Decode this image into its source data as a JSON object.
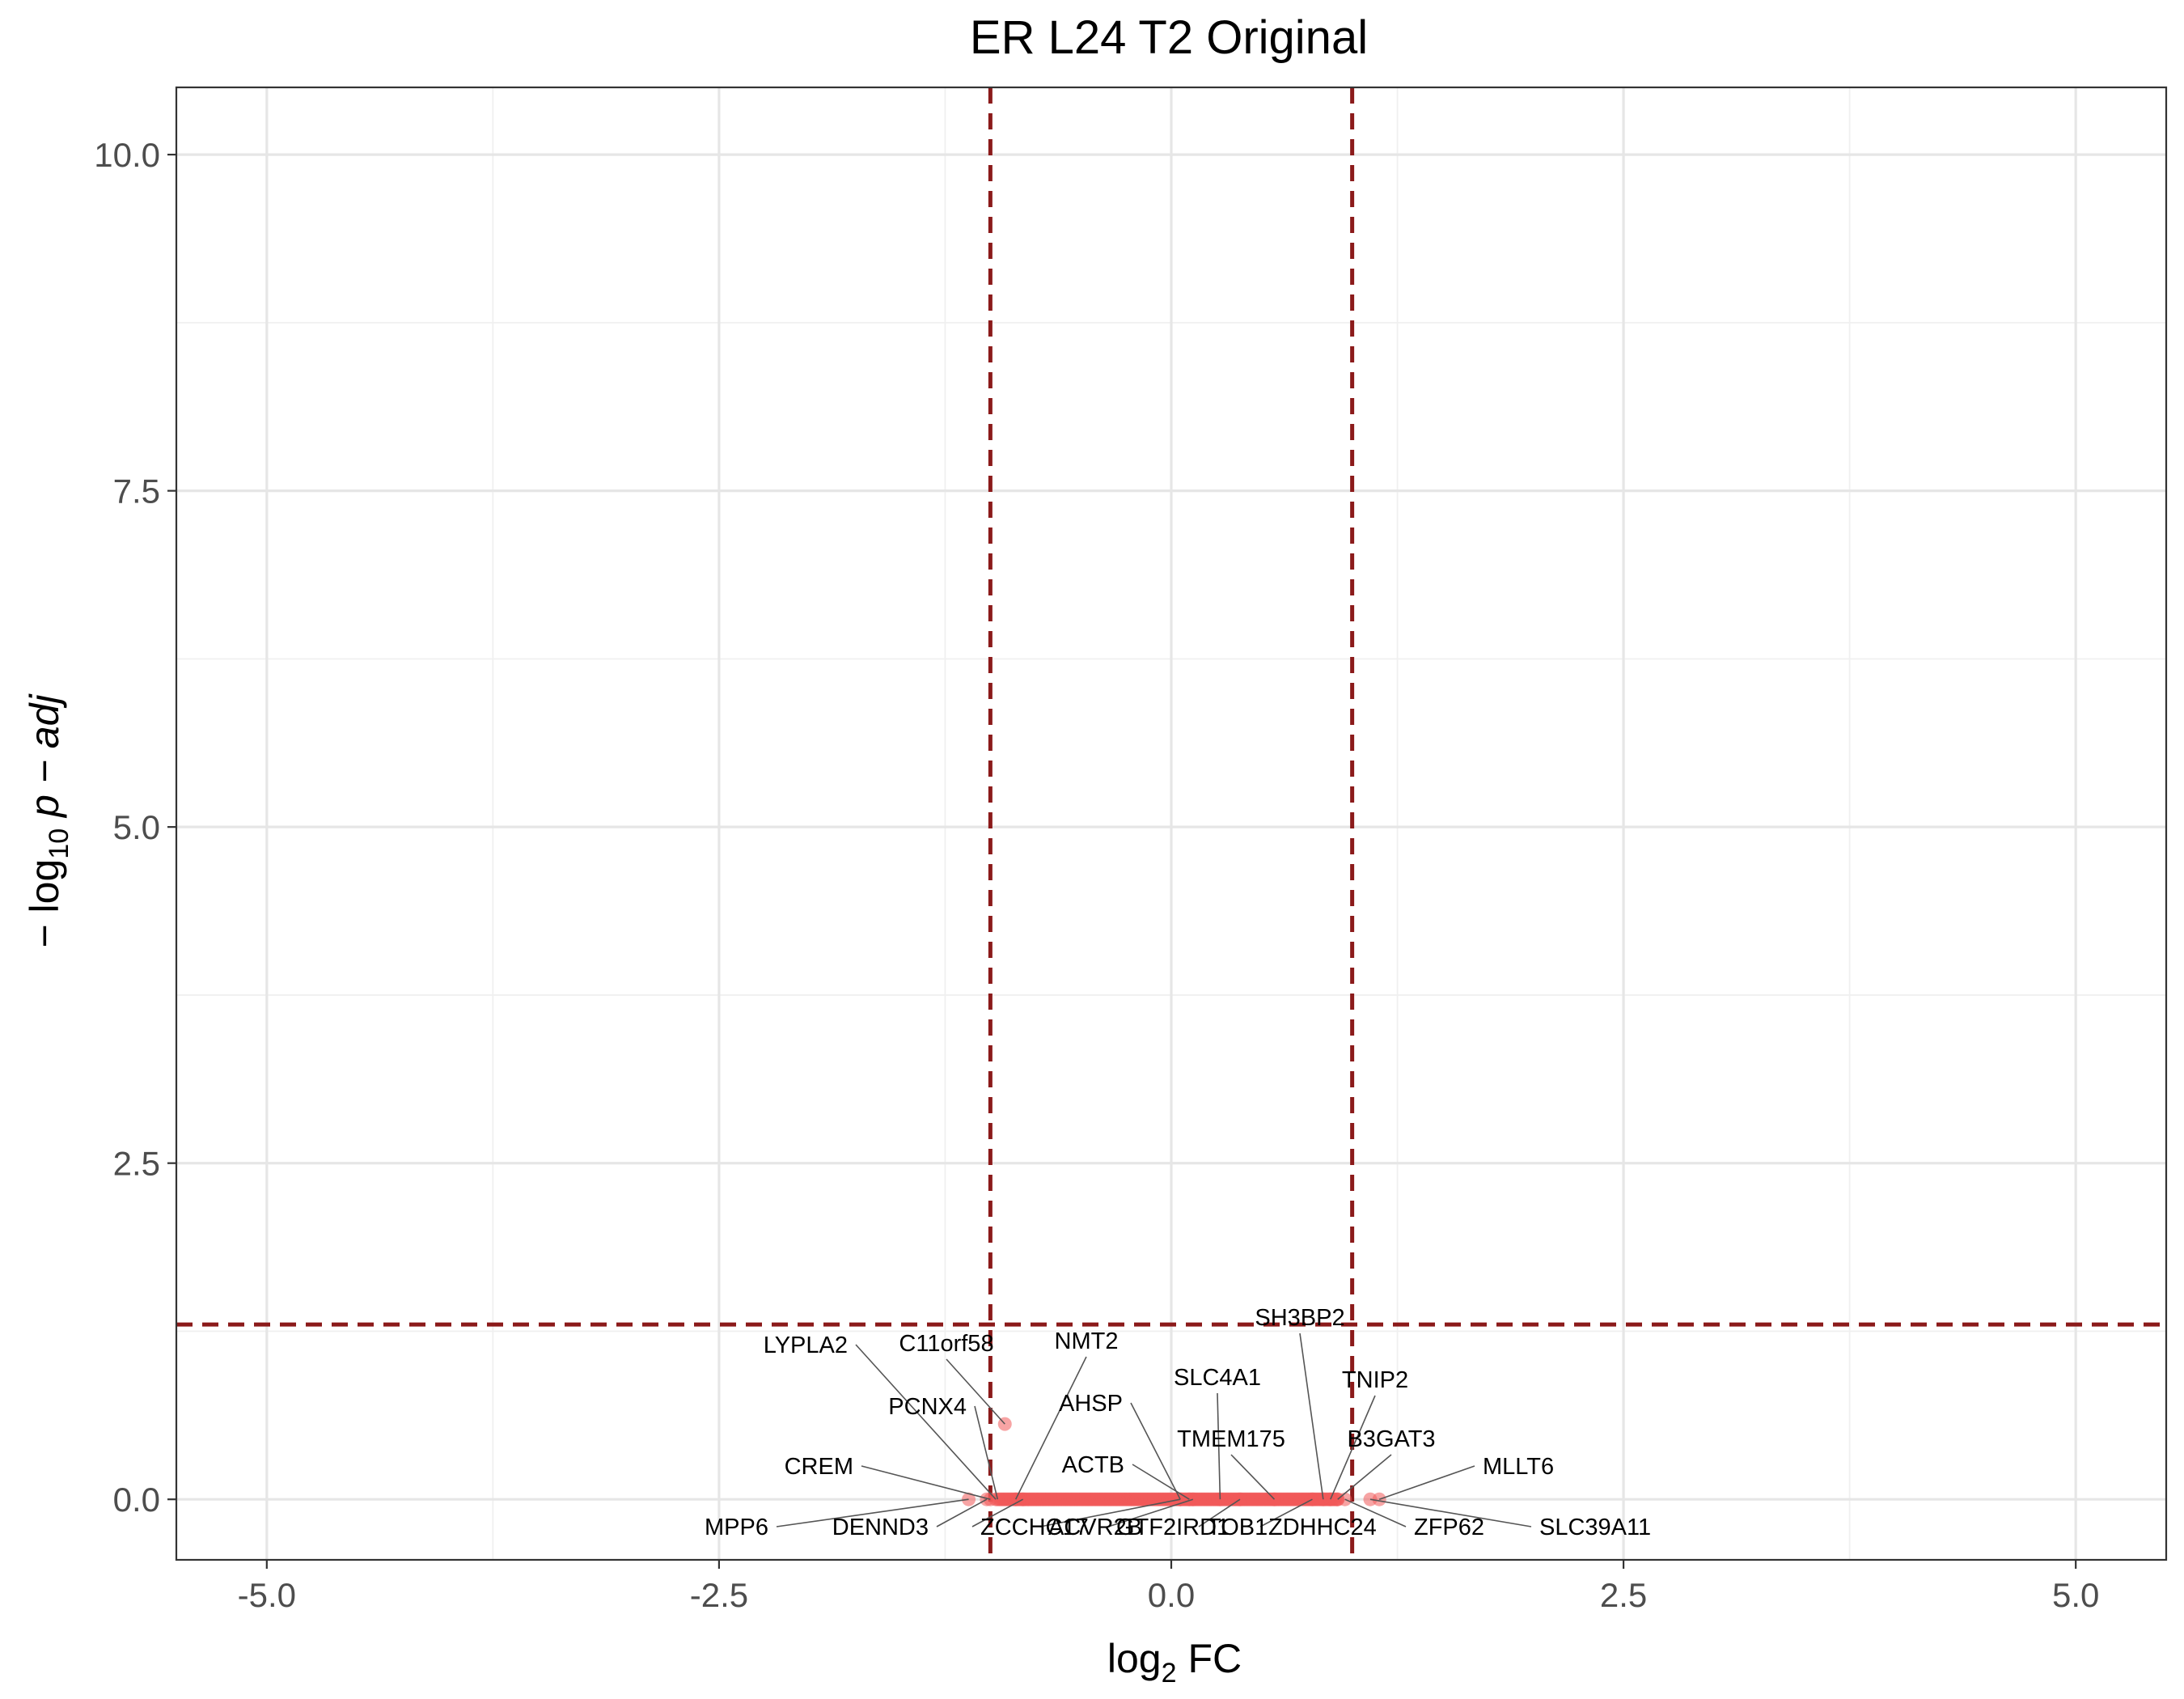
{
  "chart_data": {
    "type": "scatter",
    "title": "ER L24 T2 Original",
    "xlabel": {
      "base": "log",
      "sub": "2",
      "rest": " FC"
    },
    "ylabel": {
      "prefix": "− log",
      "sub": "10",
      "italic": " p − adj"
    },
    "xlim": [
      -5.5,
      5.5
    ],
    "ylim": [
      -0.45,
      10.5
    ],
    "x_ticks": [
      {
        "value": -5.0,
        "label": "-5.0"
      },
      {
        "value": -2.5,
        "label": "-2.5"
      },
      {
        "value": 0.0,
        "label": "0.0"
      },
      {
        "value": 2.5,
        "label": "2.5"
      },
      {
        "value": 5.0,
        "label": "5.0"
      }
    ],
    "y_ticks": [
      {
        "value": 0.0,
        "label": "0.0"
      },
      {
        "value": 2.5,
        "label": "2.5"
      },
      {
        "value": 5.0,
        "label": "5.0"
      },
      {
        "value": 7.5,
        "label": "7.5"
      },
      {
        "value": 10.0,
        "label": "10.0"
      }
    ],
    "grid": true,
    "point_color": "#f05a5a",
    "threshold_color": "#8b1a1a",
    "thresholds": {
      "vertical": [
        -1.0,
        1.0
      ],
      "horizontal": 1.3
    },
    "labeled_points": [
      {
        "gene": "C11orf58",
        "x": -0.92,
        "y": 0.56
      },
      {
        "gene": "CREM",
        "x": -1.0,
        "y": 0.0
      },
      {
        "gene": "MPP6",
        "x": -1.12,
        "y": 0.0
      },
      {
        "gene": "LYPLA2",
        "x": -0.97,
        "y": 0.0
      },
      {
        "gene": "PCNX4",
        "x": -0.96,
        "y": 0.0
      },
      {
        "gene": "DENND3",
        "x": -1.02,
        "y": 0.0
      },
      {
        "gene": "NMT2",
        "x": -0.86,
        "y": 0.0
      },
      {
        "gene": "ZCCHC17",
        "x": -0.82,
        "y": 0.0
      },
      {
        "gene": "AHSP",
        "x": 0.05,
        "y": 0.0
      },
      {
        "gene": "ACTB",
        "x": 0.1,
        "y": 0.0
      },
      {
        "gene": "ACVR2B",
        "x": 0.05,
        "y": 0.0
      },
      {
        "gene": "GTF2IRD1",
        "x": 0.12,
        "y": 0.0
      },
      {
        "gene": "SLC4A1",
        "x": 0.27,
        "y": 0.0
      },
      {
        "gene": "TMEM175",
        "x": 0.57,
        "y": 0.0
      },
      {
        "gene": "ZDHHC24",
        "x": 0.78,
        "y": 0.0
      },
      {
        "gene": "TOB1",
        "x": 0.38,
        "y": 0.0
      },
      {
        "gene": "SH3BP2",
        "x": 0.84,
        "y": 0.0
      },
      {
        "gene": "TNIP2",
        "x": 0.88,
        "y": 0.0
      },
      {
        "gene": "B3GAT3",
        "x": 0.92,
        "y": 0.0
      },
      {
        "gene": "MLLT6",
        "x": 1.15,
        "y": 0.0
      },
      {
        "gene": "ZFP62",
        "x": 0.96,
        "y": 0.0
      },
      {
        "gene": "SLC39A11",
        "x": 1.1,
        "y": 0.0
      }
    ],
    "background_points": {
      "y": 0.0,
      "x_range": [
        -0.95,
        0.92
      ],
      "count": 230
    }
  }
}
